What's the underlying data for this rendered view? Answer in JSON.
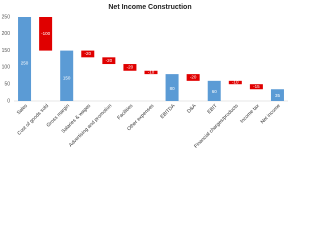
{
  "chart_data": {
    "type": "waterfall",
    "title": "Net Income Construction",
    "categories": [
      "Sales",
      "Cost of goods sold",
      "Gross margin",
      "Salaries & wages",
      "Advertising and promotion",
      "Facilities",
      "Other expenses",
      "EBITDA",
      "D&A",
      "EBIT",
      "Financial charges/products",
      "Income tax",
      "Net income"
    ],
    "values": [
      250,
      -100,
      150,
      -20,
      -20,
      -20,
      -10,
      80,
      -20,
      60,
      -10,
      -15,
      35
    ],
    "total_color": "#5b9bd5",
    "decrease_color": "#e00000",
    "ylim": [
      0,
      250
    ],
    "yticks": [
      0,
      50,
      100,
      150,
      200,
      250
    ],
    "grid": false
  }
}
